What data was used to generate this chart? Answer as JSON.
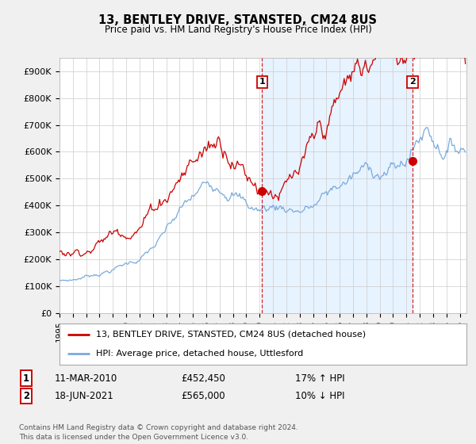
{
  "title": "13, BENTLEY DRIVE, STANSTED, CM24 8US",
  "subtitle": "Price paid vs. HM Land Registry's House Price Index (HPI)",
  "yticks": [
    0,
    100000,
    200000,
    300000,
    400000,
    500000,
    600000,
    700000,
    800000,
    900000
  ],
  "ytick_labels": [
    "£0",
    "£100K",
    "£200K",
    "£300K",
    "£400K",
    "£500K",
    "£600K",
    "£700K",
    "£800K",
    "£900K"
  ],
  "xlim_start": 1995.0,
  "xlim_end": 2025.5,
  "ylim_min": 0,
  "ylim_max": 950000,
  "line_color_property": "#cc0000",
  "line_color_hpi": "#7aaadd",
  "shade_color": "#ddeeff",
  "transaction1_x": 2010.19,
  "transaction1_y": 452450,
  "transaction1_label": "1",
  "transaction1_date": "11-MAR-2010",
  "transaction1_price": "£452,450",
  "transaction1_hpi": "17% ↑ HPI",
  "transaction2_x": 2021.46,
  "transaction2_y": 565000,
  "transaction2_label": "2",
  "transaction2_date": "18-JUN-2021",
  "transaction2_price": "£565,000",
  "transaction2_hpi": "10% ↓ HPI",
  "legend_property": "13, BENTLEY DRIVE, STANSTED, CM24 8US (detached house)",
  "legend_hpi": "HPI: Average price, detached house, Uttlesford",
  "footer": "Contains HM Land Registry data © Crown copyright and database right 2024.\nThis data is licensed under the Open Government Licence v3.0.",
  "background_color": "#f0f0f0",
  "plot_bg_color": "#ffffff"
}
